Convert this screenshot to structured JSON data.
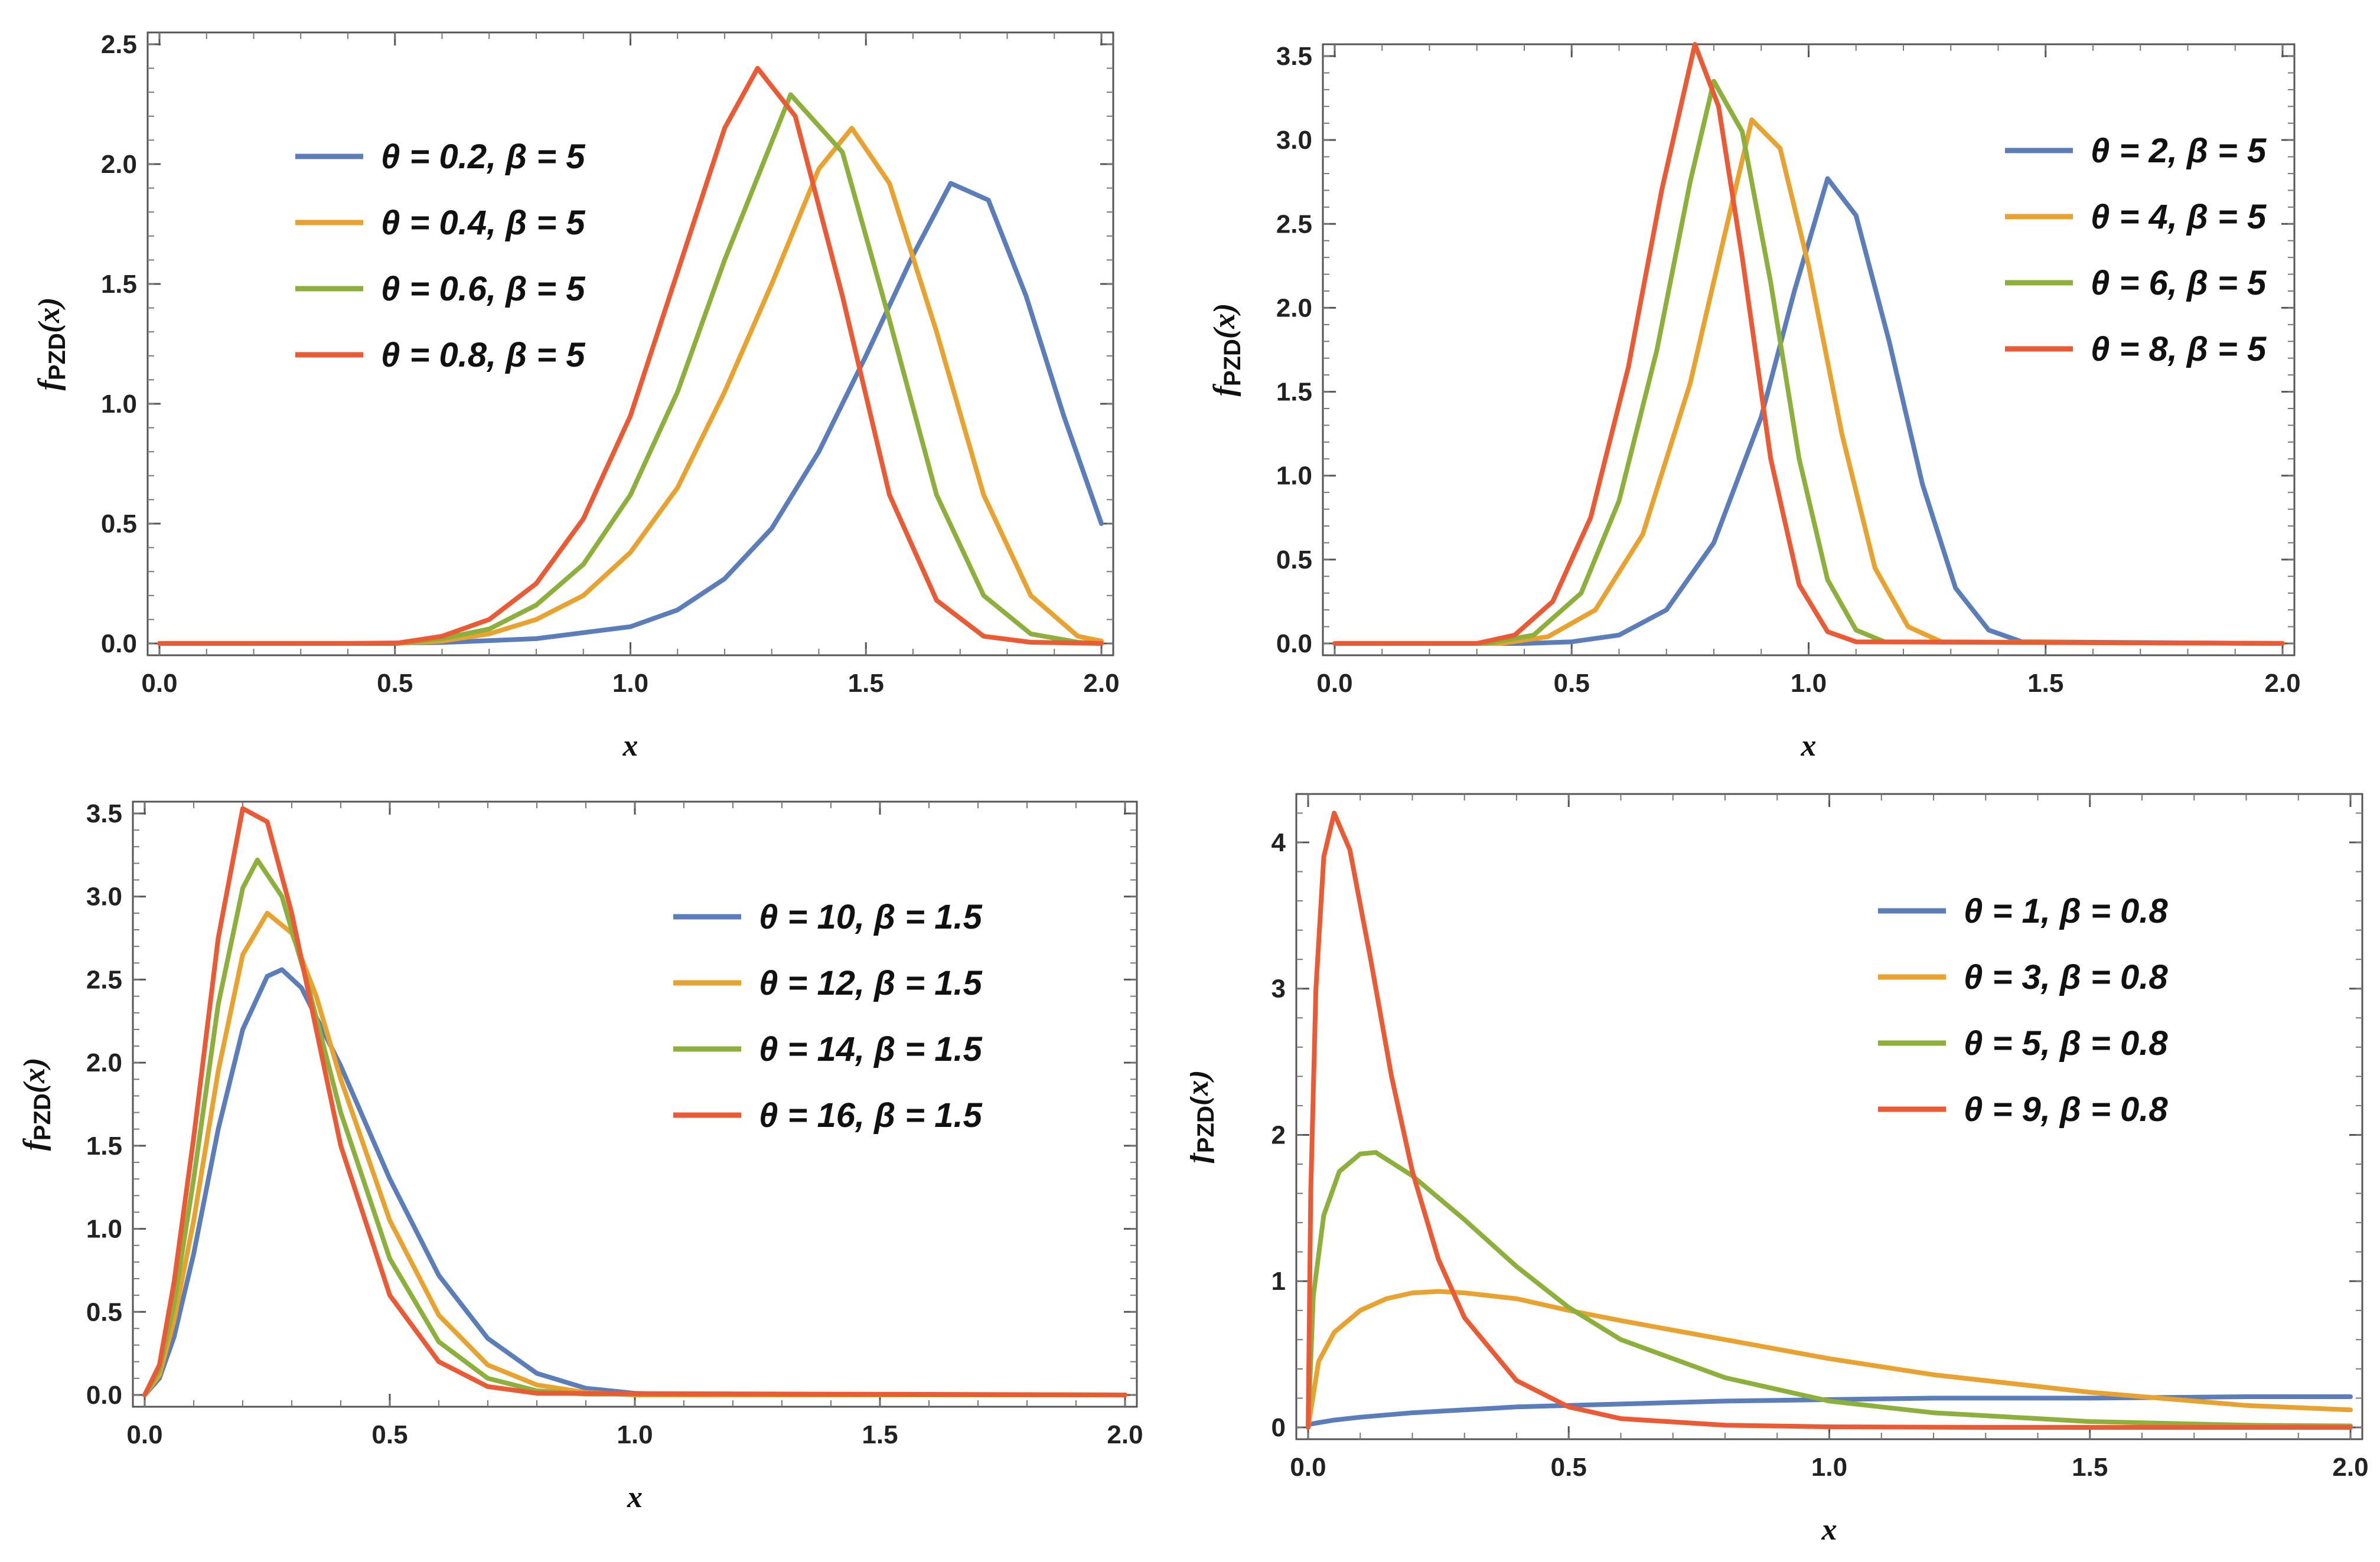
{
  "palette": [
    "#5B7DB9",
    "#E8A22F",
    "#8DB03C",
    "#EA5A34"
  ],
  "chart_data": [
    {
      "type": "line",
      "xlabel": "x",
      "ylabel": "f_{PZD}(x)",
      "ylabel_main": "f",
      "ylabel_sub": "PZD",
      "ylabel_tail": "(x)",
      "xlim": [
        0,
        2
      ],
      "ylim": [
        0,
        2.5
      ],
      "xticks": [
        "0.0",
        "0.5",
        "1.0",
        "1.5",
        "2.0"
      ],
      "yticks": [
        "0.0",
        "0.5",
        "1.0",
        "1.5",
        "2.0",
        "2.5"
      ],
      "legend_position": "left-center",
      "series": [
        {
          "name": "θ = 0.2, β = 5",
          "x": [
            0,
            0.4,
            0.6,
            0.8,
            1.0,
            1.1,
            1.2,
            1.3,
            1.4,
            1.5,
            1.6,
            1.68,
            1.76,
            1.84,
            1.92,
            2.0
          ],
          "values": [
            0,
            0,
            0.004,
            0.02,
            0.07,
            0.14,
            0.27,
            0.48,
            0.8,
            1.2,
            1.62,
            1.92,
            1.85,
            1.45,
            0.95,
            0.5
          ]
        },
        {
          "name": "θ = 0.4, β = 5",
          "x": [
            0,
            0.5,
            0.6,
            0.7,
            0.8,
            0.9,
            1.0,
            1.1,
            1.2,
            1.3,
            1.4,
            1.47,
            1.55,
            1.65,
            1.75,
            1.85,
            1.95,
            2.0
          ],
          "values": [
            0,
            0,
            0.01,
            0.04,
            0.1,
            0.2,
            0.38,
            0.65,
            1.05,
            1.5,
            1.98,
            2.15,
            1.92,
            1.3,
            0.62,
            0.2,
            0.03,
            0.01
          ]
        },
        {
          "name": "θ = 0.6, β = 5",
          "x": [
            0,
            0.5,
            0.6,
            0.7,
            0.8,
            0.9,
            1.0,
            1.1,
            1.2,
            1.34,
            1.45,
            1.55,
            1.65,
            1.75,
            1.85,
            1.95,
            2.0
          ],
          "values": [
            0,
            0,
            0.02,
            0.06,
            0.16,
            0.33,
            0.62,
            1.05,
            1.6,
            2.29,
            2.05,
            1.35,
            0.62,
            0.2,
            0.04,
            0.005,
            0
          ]
        },
        {
          "name": "θ = 0.8, β = 5",
          "x": [
            0,
            0.5,
            0.6,
            0.7,
            0.8,
            0.9,
            1.0,
            1.1,
            1.2,
            1.27,
            1.35,
            1.45,
            1.55,
            1.65,
            1.75,
            1.85,
            2.0
          ],
          "values": [
            0,
            0,
            0.03,
            0.1,
            0.25,
            0.52,
            0.95,
            1.55,
            2.15,
            2.4,
            2.2,
            1.45,
            0.62,
            0.18,
            0.03,
            0.005,
            0
          ]
        }
      ]
    },
    {
      "type": "line",
      "xlabel": "x",
      "ylabel": "f_{PZD}(x)",
      "ylabel_main": "f",
      "ylabel_sub": "PZD",
      "ylabel_tail": "(x)",
      "xlim": [
        0,
        2
      ],
      "ylim": [
        0,
        3.5
      ],
      "xticks": [
        "0.0",
        "0.5",
        "1.0",
        "1.5",
        "2.0"
      ],
      "yticks": [
        "0.0",
        "0.5",
        "1.0",
        "1.5",
        "2.0",
        "2.5",
        "3.0",
        "3.5"
      ],
      "legend_position": "right-center",
      "series": [
        {
          "name": "θ = 2, β = 5",
          "x": [
            0,
            0.4,
            0.5,
            0.6,
            0.7,
            0.8,
            0.9,
            0.97,
            1.04,
            1.1,
            1.17,
            1.24,
            1.31,
            1.38,
            1.45,
            2.0
          ],
          "values": [
            0,
            0,
            0.01,
            0.05,
            0.2,
            0.6,
            1.35,
            2.1,
            2.77,
            2.55,
            1.8,
            0.95,
            0.33,
            0.08,
            0.01,
            0
          ]
        },
        {
          "name": "θ = 4, β = 5",
          "x": [
            0,
            0.35,
            0.45,
            0.55,
            0.65,
            0.75,
            0.82,
            0.88,
            0.94,
            1.0,
            1.07,
            1.14,
            1.21,
            1.28,
            2.0
          ],
          "values": [
            0,
            0,
            0.04,
            0.2,
            0.65,
            1.55,
            2.4,
            3.12,
            2.95,
            2.25,
            1.25,
            0.45,
            0.1,
            0.01,
            0
          ]
        },
        {
          "name": "θ = 6, β = 5",
          "x": [
            0,
            0.32,
            0.42,
            0.52,
            0.6,
            0.68,
            0.75,
            0.8,
            0.86,
            0.92,
            0.98,
            1.04,
            1.1,
            1.16,
            2.0
          ],
          "values": [
            0,
            0,
            0.05,
            0.3,
            0.85,
            1.75,
            2.75,
            3.35,
            3.05,
            2.15,
            1.1,
            0.38,
            0.08,
            0.01,
            0
          ]
        },
        {
          "name": "θ = 8, β = 5",
          "x": [
            0,
            0.3,
            0.38,
            0.46,
            0.54,
            0.62,
            0.69,
            0.76,
            0.81,
            0.86,
            0.92,
            0.98,
            1.04,
            1.1,
            2.0
          ],
          "values": [
            0,
            0,
            0.05,
            0.25,
            0.75,
            1.65,
            2.7,
            3.57,
            3.2,
            2.3,
            1.1,
            0.35,
            0.07,
            0.01,
            0
          ]
        }
      ]
    },
    {
      "type": "line",
      "xlabel": "x",
      "ylabel": "f_{PZD}(x)",
      "ylabel_main": "f",
      "ylabel_sub": "PZD",
      "ylabel_tail": "(x)",
      "xlim": [
        0,
        2
      ],
      "ylim": [
        0,
        3.5
      ],
      "xticks": [
        "0.0",
        "0.5",
        "1.0",
        "1.5",
        "2.0"
      ],
      "yticks": [
        "0.0",
        "0.5",
        "1.0",
        "1.5",
        "2.0",
        "2.5",
        "3.0",
        "3.5"
      ],
      "legend_position": "right-center",
      "series": [
        {
          "name": "θ = 10, β = 1.5",
          "x": [
            0,
            0.03,
            0.06,
            0.1,
            0.15,
            0.2,
            0.25,
            0.28,
            0.32,
            0.4,
            0.5,
            0.6,
            0.7,
            0.8,
            0.9,
            1.0,
            1.1,
            2.0
          ],
          "values": [
            0,
            0.1,
            0.35,
            0.85,
            1.6,
            2.2,
            2.52,
            2.56,
            2.45,
            1.98,
            1.3,
            0.72,
            0.34,
            0.13,
            0.04,
            0.01,
            0,
            0
          ]
        },
        {
          "name": "θ = 12, β = 1.5",
          "x": [
            0,
            0.03,
            0.06,
            0.1,
            0.15,
            0.2,
            0.25,
            0.3,
            0.35,
            0.4,
            0.5,
            0.6,
            0.7,
            0.8,
            0.9,
            1.0,
            2.0
          ],
          "values": [
            0,
            0.12,
            0.45,
            1.05,
            1.95,
            2.65,
            2.9,
            2.78,
            2.4,
            1.9,
            1.05,
            0.48,
            0.18,
            0.06,
            0.015,
            0,
            0
          ]
        },
        {
          "name": "θ = 14, β = 1.5",
          "x": [
            0,
            0.03,
            0.06,
            0.1,
            0.15,
            0.2,
            0.23,
            0.28,
            0.33,
            0.4,
            0.5,
            0.6,
            0.7,
            0.8,
            0.9,
            2.0
          ],
          "values": [
            0,
            0.15,
            0.55,
            1.3,
            2.35,
            3.05,
            3.22,
            3.0,
            2.5,
            1.7,
            0.82,
            0.32,
            0.1,
            0.025,
            0.005,
            0
          ]
        },
        {
          "name": "θ = 16, β = 1.5",
          "x": [
            0,
            0.03,
            0.06,
            0.1,
            0.15,
            0.2,
            0.25,
            0.3,
            0.35,
            0.4,
            0.5,
            0.6,
            0.7,
            0.8,
            2.0
          ],
          "values": [
            0,
            0.18,
            0.68,
            1.55,
            2.75,
            3.53,
            3.45,
            2.9,
            2.2,
            1.5,
            0.6,
            0.2,
            0.05,
            0.01,
            0
          ]
        }
      ]
    },
    {
      "type": "line",
      "xlabel": "x",
      "ylabel": "f_{PZD}(x)",
      "ylabel_main": "f",
      "ylabel_sub": "PZD",
      "ylabel_tail": "(x)",
      "xlim": [
        0,
        2
      ],
      "ylim": [
        0,
        4.25
      ],
      "xticks": [
        "0.0",
        "0.5",
        "1.0",
        "1.5",
        "2.0"
      ],
      "yticks": [
        "0",
        "1",
        "2",
        "3",
        "4"
      ],
      "legend_position": "top-right",
      "series": [
        {
          "name": "θ = 1, β = 0.8",
          "x": [
            0,
            0.05,
            0.1,
            0.2,
            0.3,
            0.4,
            0.5,
            0.6,
            0.7,
            0.8,
            1.0,
            1.2,
            1.5,
            1.8,
            2.0
          ],
          "values": [
            0.02,
            0.05,
            0.07,
            0.1,
            0.12,
            0.14,
            0.15,
            0.16,
            0.17,
            0.18,
            0.19,
            0.2,
            0.2,
            0.21,
            0.21
          ]
        },
        {
          "name": "θ = 3, β = 0.8",
          "x": [
            0,
            0.02,
            0.05,
            0.1,
            0.15,
            0.2,
            0.25,
            0.3,
            0.4,
            0.5,
            0.6,
            0.8,
            1.0,
            1.2,
            1.5,
            1.8,
            2.0
          ],
          "values": [
            0,
            0.45,
            0.65,
            0.8,
            0.88,
            0.92,
            0.93,
            0.92,
            0.88,
            0.8,
            0.73,
            0.6,
            0.47,
            0.36,
            0.24,
            0.15,
            0.12
          ]
        },
        {
          "name": "θ = 5, β = 0.8",
          "x": [
            0,
            0.01,
            0.03,
            0.06,
            0.1,
            0.13,
            0.2,
            0.3,
            0.4,
            0.5,
            0.6,
            0.8,
            1.0,
            1.2,
            1.5,
            1.8,
            2.0
          ],
          "values": [
            0,
            0.9,
            1.45,
            1.75,
            1.87,
            1.88,
            1.72,
            1.42,
            1.1,
            0.82,
            0.6,
            0.34,
            0.18,
            0.1,
            0.04,
            0.015,
            0.01
          ]
        },
        {
          "name": "θ = 9, β = 0.8",
          "x": [
            0,
            0.005,
            0.015,
            0.03,
            0.05,
            0.08,
            0.12,
            0.16,
            0.2,
            0.25,
            0.3,
            0.4,
            0.5,
            0.6,
            0.8,
            1.0,
            1.3,
            2.0
          ],
          "values": [
            0,
            1.6,
            3.0,
            3.9,
            4.2,
            3.95,
            3.2,
            2.4,
            1.75,
            1.15,
            0.75,
            0.32,
            0.14,
            0.06,
            0.015,
            0.004,
            0,
            0
          ]
        }
      ]
    }
  ]
}
